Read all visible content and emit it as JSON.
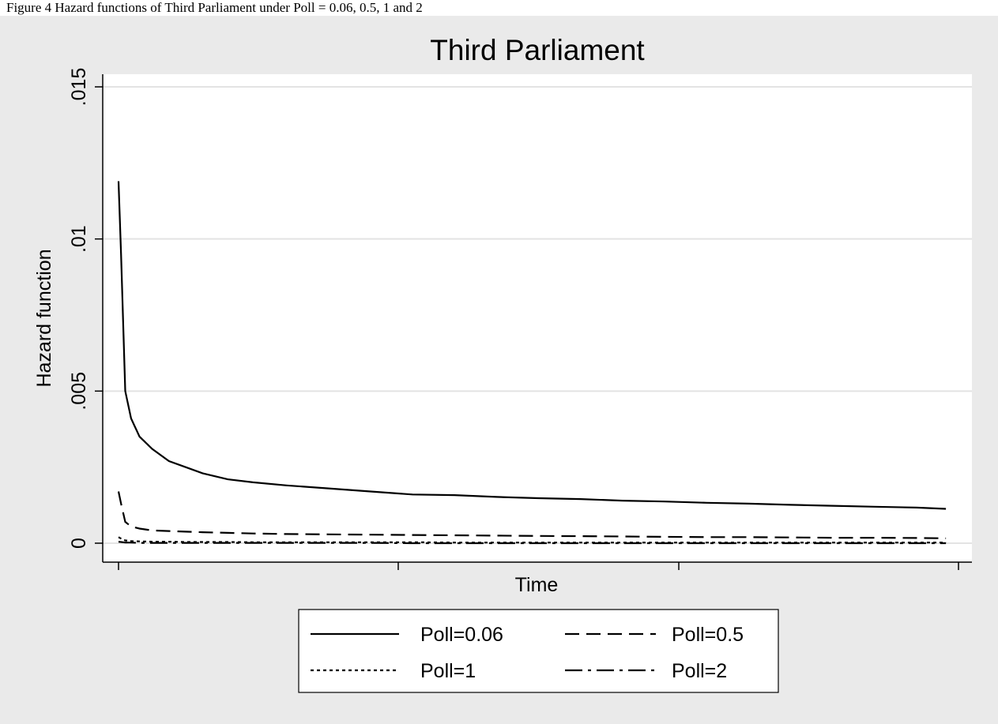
{
  "caption": "Figure 4 Hazard functions of Third Parliament under Poll = 0.06, 0.5, 1 and 2",
  "chart_data": {
    "type": "line",
    "title": "Third Parliament",
    "xlabel": "Time",
    "ylabel": "Hazard function",
    "ylim": [
      0,
      0.015
    ],
    "xlim": [
      0,
      1
    ],
    "yticks": [
      {
        "value": 0,
        "label": "0"
      },
      {
        "value": 0.005,
        "label": ".005"
      },
      {
        "value": 0.01,
        "label": ".01"
      },
      {
        "value": 0.015,
        "label": ".015"
      }
    ],
    "xticks": [
      0,
      0.333,
      0.667,
      1
    ],
    "grid": true,
    "legend_position": "bottom",
    "x": [
      0.0,
      0.003,
      0.008,
      0.015,
      0.025,
      0.04,
      0.06,
      0.08,
      0.1,
      0.13,
      0.16,
      0.2,
      0.25,
      0.3,
      0.35,
      0.4,
      0.45,
      0.5,
      0.55,
      0.6,
      0.65,
      0.7,
      0.75,
      0.8,
      0.85,
      0.9,
      0.95,
      0.985
    ],
    "series": [
      {
        "name": "Poll=0.06",
        "dash": "solid",
        "values": [
          0.0119,
          0.0095,
          0.005,
          0.0041,
          0.0035,
          0.0031,
          0.0027,
          0.0025,
          0.0023,
          0.0021,
          0.002,
          0.0019,
          0.0018,
          0.0017,
          0.0016,
          0.00158,
          0.00152,
          0.00148,
          0.00145,
          0.0014,
          0.00137,
          0.00133,
          0.0013,
          0.00126,
          0.00123,
          0.0012,
          0.00117,
          0.00113
        ]
      },
      {
        "name": "Poll=0.5",
        "dash": "dash",
        "values": [
          0.0017,
          0.0013,
          0.0007,
          0.00055,
          0.00048,
          0.00042,
          0.0004,
          0.00038,
          0.00036,
          0.00034,
          0.00032,
          0.0003,
          0.00029,
          0.00028,
          0.00027,
          0.00026,
          0.00025,
          0.00024,
          0.00023,
          0.00022,
          0.00021,
          0.0002,
          0.0002,
          0.00019,
          0.00018,
          0.00018,
          0.00017,
          0.00016
        ]
      },
      {
        "name": "Poll=1",
        "dash": "dot",
        "values": [
          0.0002,
          0.00015,
          9e-05,
          7e-05,
          6e-05,
          5e-05,
          5e-05,
          4e-05,
          4e-05,
          4e-05,
          3e-05,
          3e-05,
          3e-05,
          3e-05,
          3e-05,
          2e-05,
          2e-05,
          2e-05,
          2e-05,
          2e-05,
          2e-05,
          2e-05,
          2e-05,
          2e-05,
          2e-05,
          2e-05,
          2e-05,
          2e-05
        ]
      },
      {
        "name": "Poll=2",
        "dash": "dashdot",
        "values": [
          5e-05,
          4e-05,
          2e-05,
          2e-05,
          1e-05,
          1e-05,
          1e-05,
          1e-05,
          1e-05,
          1e-05,
          1e-05,
          1e-05,
          1e-05,
          1e-05,
          0.0,
          0.0,
          0.0,
          0.0,
          0.0,
          0.0,
          0.0,
          0.0,
          0.0,
          0.0,
          0.0,
          0.0,
          0.0,
          0.0
        ]
      }
    ]
  }
}
